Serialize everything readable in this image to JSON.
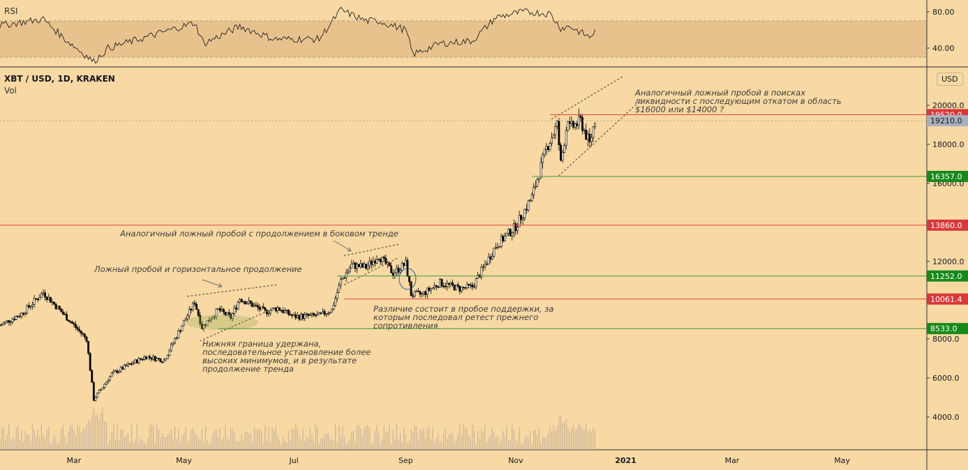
{
  "header": {
    "symbol": "XBT / USD, 1D, KRAKEN",
    "volume_label": "Vol",
    "rsi_label": "RSI",
    "currency": "USD"
  },
  "colors": {
    "background": "#f8d9a3",
    "rsi_band": "#e8c28d",
    "red_line": "#e0443a",
    "green_line": "#3a9a3a",
    "red_badge": "#d9383a",
    "green_badge": "#158a1a",
    "gray_badge": "#a9b0bc",
    "candle": "#000000",
    "volume": "#c9b39b"
  },
  "annotations": [
    {
      "id": "false-breakout-horizontal",
      "text": "Ложный пробой и горизонтальное продолжение"
    },
    {
      "id": "similar-false-breakout-sideways",
      "text": "Аналогичный ложный пробой с продолжением в боковом тренде"
    },
    {
      "id": "lower-boundary-held",
      "text": "Нижняя граница удержана, последовательное установление более высоких минимумов, и в результате продолжение тренда"
    },
    {
      "id": "difference-support-break",
      "text": "Различие состоит в пробое поддержки, за которым последовал ретест прежнего сопротивления"
    },
    {
      "id": "similar-false-breakout-liquidity",
      "text": "Аналогичный ложный пробой в поисках ликвидности с последующим откатом в область $16000 или $14000 ?"
    }
  ],
  "chart_data": {
    "type": "candlestick",
    "title": "XBT / USD, 1D, KRAKEN",
    "x_axis": {
      "type": "date",
      "range": [
        "2020-01-20",
        "2021-06-17"
      ],
      "ticks": [
        "Mar",
        "May",
        "Jul",
        "Sep",
        "Nov",
        "2021",
        "Mar",
        "May"
      ]
    },
    "y_axis": {
      "label": "USD",
      "range": [
        2700,
        21600
      ],
      "ticks": [
        "4000.0",
        "6000.0",
        "8000.0",
        "12000.0",
        "16000.0",
        "18000.0",
        "20000.0"
      ]
    },
    "rsi": {
      "label": "RSI",
      "range": [
        20,
        90
      ],
      "band": [
        30,
        70
      ],
      "ticks": [
        "40.00",
        "80.00"
      ]
    },
    "price_lines": [
      {
        "value": 19520.0,
        "label": "19520.0",
        "kind": "red",
        "badge": "red"
      },
      {
        "value": 19210.0,
        "label": "19210.0",
        "kind": "current",
        "badge": "gray"
      },
      {
        "value": 16357.0,
        "label": "16357.0",
        "kind": "green",
        "badge": "green"
      },
      {
        "value": 13860.0,
        "label": "13860.0",
        "kind": "red",
        "badge": "red"
      },
      {
        "value": 11252.0,
        "label": "11252.0",
        "kind": "green",
        "badge": "green"
      },
      {
        "value": 10061.4,
        "label": "10061.4",
        "kind": "red",
        "badge": "red"
      },
      {
        "value": 8533.0,
        "label": "8533.0",
        "kind": "green",
        "badge": "green"
      }
    ],
    "price_path": [
      [
        "2020-01-20",
        8700
      ],
      [
        "2020-02-01",
        9300
      ],
      [
        "2020-02-13",
        10400
      ],
      [
        "2020-02-20",
        9700
      ],
      [
        "2020-03-01",
        8700
      ],
      [
        "2020-03-08",
        8000
      ],
      [
        "2020-03-12",
        4900
      ],
      [
        "2020-03-15",
        5300
      ],
      [
        "2020-03-22",
        6200
      ],
      [
        "2020-04-01",
        6700
      ],
      [
        "2020-04-10",
        7100
      ],
      [
        "2020-04-20",
        6900
      ],
      [
        "2020-04-30",
        8700
      ],
      [
        "2020-05-07",
        9900
      ],
      [
        "2020-05-11",
        8600
      ],
      [
        "2020-05-20",
        9500
      ],
      [
        "2020-05-27",
        9100
      ],
      [
        "2020-06-01",
        10100
      ],
      [
        "2020-06-15",
        9400
      ],
      [
        "2020-06-22",
        9600
      ],
      [
        "2020-07-01",
        9150
      ],
      [
        "2020-07-15",
        9200
      ],
      [
        "2020-07-22",
        9500
      ],
      [
        "2020-07-27",
        11000
      ],
      [
        "2020-08-02",
        11800
      ],
      [
        "2020-08-10",
        11700
      ],
      [
        "2020-08-17",
        12300
      ],
      [
        "2020-08-25",
        11400
      ],
      [
        "2020-09-01",
        11900
      ],
      [
        "2020-09-04",
        10300
      ],
      [
        "2020-09-10",
        10300
      ],
      [
        "2020-09-20",
        10900
      ],
      [
        "2020-10-01",
        10600
      ],
      [
        "2020-10-08",
        10700
      ],
      [
        "2020-10-21",
        12800
      ],
      [
        "2020-11-01",
        13800
      ],
      [
        "2020-11-10",
        15300
      ],
      [
        "2020-11-18",
        17800
      ],
      [
        "2020-11-24",
        19000
      ],
      [
        "2020-11-26",
        17000
      ],
      [
        "2020-11-30",
        19400
      ],
      [
        "2020-12-01",
        18800
      ],
      [
        "2020-12-07",
        19200
      ],
      [
        "2020-12-12",
        18000
      ],
      [
        "2020-12-15",
        19300
      ]
    ],
    "rsi_path": [
      [
        "2020-01-20",
        65
      ],
      [
        "2020-02-13",
        72
      ],
      [
        "2020-02-25",
        50
      ],
      [
        "2020-03-12",
        25
      ],
      [
        "2020-03-20",
        40
      ],
      [
        "2020-04-10",
        52
      ],
      [
        "2020-05-07",
        68
      ],
      [
        "2020-05-12",
        45
      ],
      [
        "2020-06-01",
        64
      ],
      [
        "2020-06-20",
        50
      ],
      [
        "2020-07-15",
        50
      ],
      [
        "2020-07-27",
        82
      ],
      [
        "2020-08-10",
        70
      ],
      [
        "2020-08-17",
        70
      ],
      [
        "2020-09-01",
        60
      ],
      [
        "2020-09-05",
        33
      ],
      [
        "2020-09-20",
        45
      ],
      [
        "2020-10-08",
        48
      ],
      [
        "2020-10-21",
        74
      ],
      [
        "2020-11-05",
        80
      ],
      [
        "2020-11-20",
        78
      ],
      [
        "2020-11-26",
        62
      ],
      [
        "2020-12-01",
        64
      ],
      [
        "2020-12-12",
        52
      ],
      [
        "2020-12-15",
        58
      ]
    ],
    "trendlines": [
      {
        "name": "upper-may",
        "from": [
          "2020-05-03",
          10200
        ],
        "to": [
          "2020-06-22",
          10800
        ]
      },
      {
        "name": "lower-may",
        "from": [
          "2020-05-10",
          7900
        ],
        "to": [
          "2020-06-18",
          9500
        ]
      },
      {
        "name": "upper-aug",
        "from": [
          "2020-07-29",
          12300
        ],
        "to": [
          "2020-08-29",
          12900
        ]
      },
      {
        "name": "lower-aug",
        "from": [
          "2020-07-29",
          10800
        ],
        "to": [
          "2020-08-28",
          12200
        ]
      },
      {
        "name": "upper-dec",
        "from": [
          "2020-11-21",
          19300
        ],
        "to": [
          "2020-12-31",
          21500
        ]
      },
      {
        "name": "lower-dec",
        "from": [
          "2020-11-25",
          16400
        ],
        "to": [
          "2021-01-10",
          20300
        ]
      }
    ]
  }
}
